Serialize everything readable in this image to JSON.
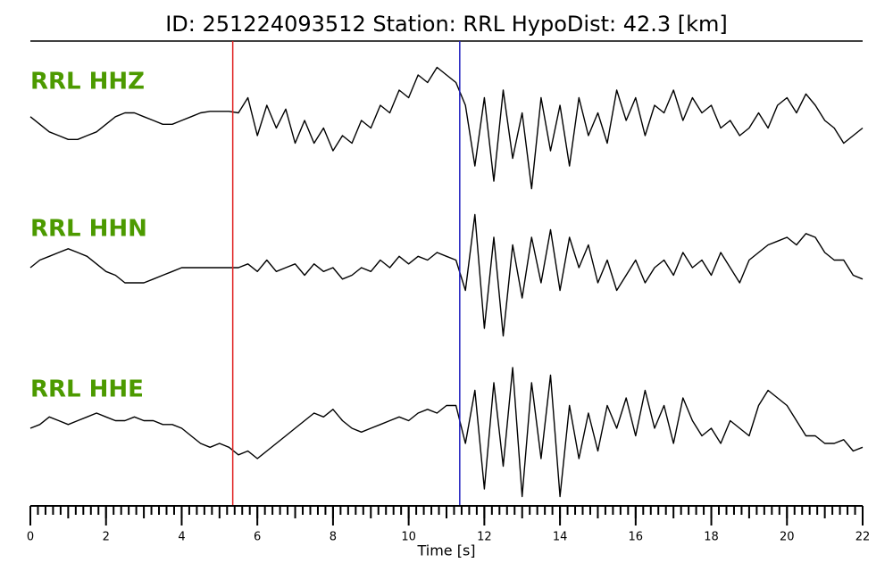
{
  "chart_data": {
    "type": "seismogram",
    "title": "ID: 251224093512   Station: RRL   HypoDist:    42.3 [km]",
    "xlabel": "Time [s]",
    "xlim": [
      0,
      22
    ],
    "xticks": [
      0,
      2,
      4,
      6,
      8,
      10,
      12,
      14,
      16,
      18,
      20,
      22
    ],
    "minor_tick_step": 0.2,
    "ylim": [
      -1,
      1
    ],
    "label_color": "#4c9a00",
    "markers": [
      {
        "x": 5.35,
        "color": "#e02020"
      },
      {
        "x": 11.35,
        "color": "#2020c0"
      }
    ],
    "x": [
      0,
      0.25,
      0.5,
      0.75,
      1,
      1.25,
      1.5,
      1.75,
      2,
      2.25,
      2.5,
      2.75,
      3,
      3.25,
      3.5,
      3.75,
      4,
      4.25,
      4.5,
      4.75,
      5,
      5.25,
      5.5,
      5.75,
      6,
      6.25,
      6.5,
      6.75,
      7,
      7.25,
      7.5,
      7.75,
      8,
      8.25,
      8.5,
      8.75,
      9,
      9.25,
      9.5,
      9.75,
      10,
      10.25,
      10.5,
      10.75,
      11,
      11.25,
      11.5,
      11.75,
      12,
      12.25,
      12.5,
      12.75,
      13,
      13.25,
      13.5,
      13.75,
      14,
      14.25,
      14.5,
      14.75,
      15,
      15.25,
      15.5,
      15.75,
      16,
      16.25,
      16.5,
      16.75,
      17,
      17.25,
      17.5,
      17.75,
      18,
      18.25,
      18.5,
      18.75,
      19,
      19.25,
      19.5,
      19.75,
      20,
      20.25,
      20.5,
      20.75,
      21,
      21.25,
      21.5,
      21.75,
      22
    ],
    "series": [
      {
        "name": "RRL HHZ",
        "color": "#000000",
        "values": [
          0.05,
          -0.05,
          -0.15,
          -0.2,
          -0.25,
          -0.25,
          -0.2,
          -0.15,
          -0.05,
          0.05,
          0.1,
          0.1,
          0.05,
          0,
          -0.05,
          -0.05,
          0,
          0.05,
          0.1,
          0.12,
          0.12,
          0.12,
          0.1,
          0.3,
          -0.2,
          0.2,
          -0.1,
          0.15,
          -0.3,
          0,
          -0.3,
          -0.1,
          -0.4,
          -0.2,
          -0.3,
          0,
          -0.1,
          0.2,
          0.1,
          0.4,
          0.3,
          0.6,
          0.5,
          0.7,
          0.6,
          0.5,
          0.2,
          -0.6,
          0.3,
          -0.8,
          0.4,
          -0.5,
          0.1,
          -0.9,
          0.3,
          -0.4,
          0.2,
          -0.6,
          0.3,
          -0.2,
          0.1,
          -0.3,
          0.4,
          0,
          0.3,
          -0.2,
          0.2,
          0.1,
          0.4,
          0,
          0.3,
          0.1,
          0.2,
          -0.1,
          0,
          -0.2,
          -0.1,
          0.1,
          -0.1,
          0.2,
          0.3,
          0.1,
          0.35,
          0.2,
          0,
          -0.1,
          -0.3,
          -0.2,
          -0.1
        ]
      },
      {
        "name": "RRL HHN",
        "color": "#000000",
        "values": [
          0,
          0.1,
          0.15,
          0.2,
          0.25,
          0.2,
          0.15,
          0.05,
          -0.05,
          -0.1,
          -0.2,
          -0.2,
          -0.2,
          -0.15,
          -0.1,
          -0.05,
          0,
          0,
          0,
          0,
          0,
          0,
          0,
          0.05,
          -0.05,
          0.1,
          -0.05,
          0,
          0.05,
          -0.1,
          0.05,
          -0.05,
          0,
          -0.15,
          -0.1,
          0,
          -0.05,
          0.1,
          0,
          0.15,
          0.05,
          0.15,
          0.1,
          0.2,
          0.15,
          0.1,
          -0.3,
          0.7,
          -0.8,
          0.4,
          -0.9,
          0.3,
          -0.4,
          0.4,
          -0.2,
          0.5,
          -0.3,
          0.4,
          0,
          0.3,
          -0.2,
          0.1,
          -0.3,
          -0.1,
          0.1,
          -0.2,
          0,
          0.1,
          -0.1,
          0.2,
          0,
          0.1,
          -0.1,
          0.2,
          0,
          -0.2,
          0.1,
          0.2,
          0.3,
          0.35,
          0.4,
          0.3,
          0.45,
          0.4,
          0.2,
          0.1,
          0.1,
          -0.1,
          -0.15
        ]
      },
      {
        "name": "RRL HHE",
        "color": "#000000",
        "values": [
          0,
          0.05,
          0.15,
          0.1,
          0.05,
          0.1,
          0.15,
          0.2,
          0.15,
          0.1,
          0.1,
          0.15,
          0.1,
          0.1,
          0.05,
          0.05,
          0,
          -0.1,
          -0.2,
          -0.25,
          -0.2,
          -0.25,
          -0.35,
          -0.3,
          -0.4,
          -0.3,
          -0.2,
          -0.1,
          0,
          0.1,
          0.2,
          0.15,
          0.25,
          0.1,
          0,
          -0.05,
          0,
          0.05,
          0.1,
          0.15,
          0.1,
          0.2,
          0.25,
          0.2,
          0.3,
          0.3,
          -0.2,
          0.5,
          -0.8,
          0.6,
          -0.5,
          0.8,
          -0.9,
          0.6,
          -0.4,
          0.7,
          -0.9,
          0.3,
          -0.4,
          0.2,
          -0.3,
          0.3,
          0,
          0.4,
          -0.1,
          0.5,
          0,
          0.3,
          -0.2,
          0.4,
          0.1,
          -0.1,
          0,
          -0.2,
          0.1,
          0,
          -0.1,
          0.3,
          0.5,
          0.4,
          0.3,
          0.1,
          -0.1,
          -0.1,
          -0.2,
          -0.2,
          -0.15,
          -0.3,
          -0.25
        ]
      }
    ]
  }
}
